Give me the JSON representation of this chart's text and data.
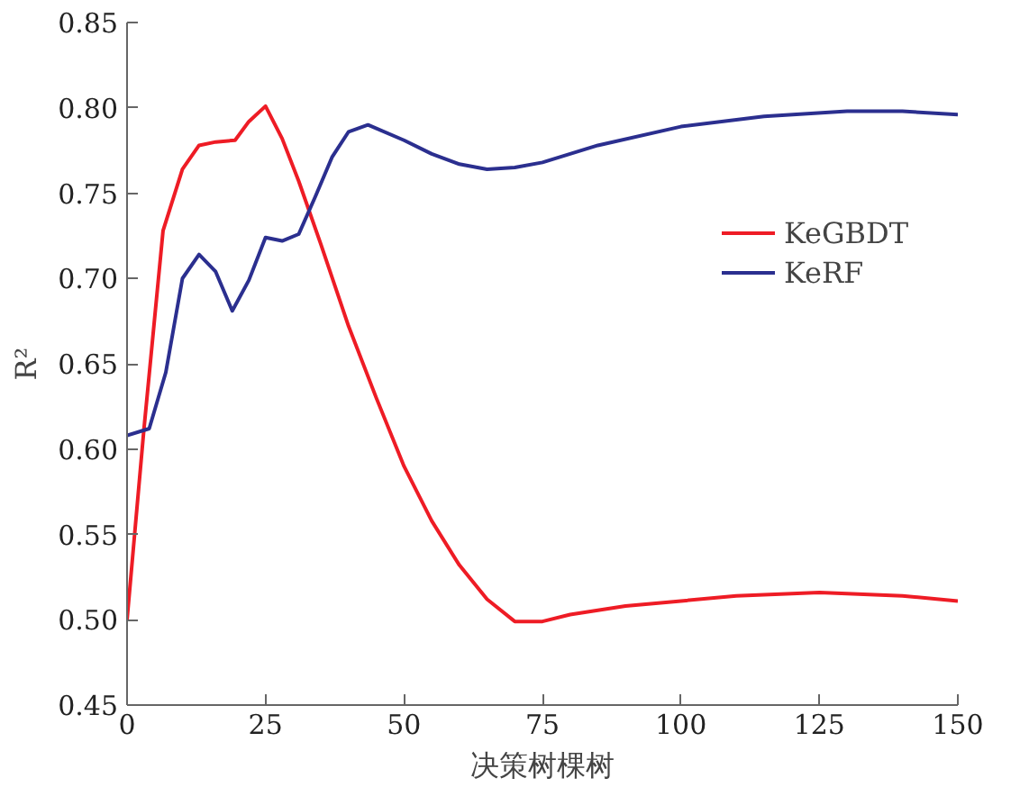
{
  "chart_data": {
    "type": "line",
    "xlabel": "决策树棵树",
    "ylabel": "R²",
    "xlim": [
      0,
      150
    ],
    "xticks": [
      0,
      25,
      50,
      75,
      100,
      125,
      150
    ],
    "ylim": [
      0.45,
      0.85
    ],
    "yticks": [
      {
        "value": 0.45,
        "label": "0.45"
      },
      {
        "value": 0.5,
        "label": "0.50"
      },
      {
        "value": 0.55,
        "label": "0.55"
      },
      {
        "value": 0.6,
        "label": "0.60"
      },
      {
        "value": 0.65,
        "label": "0.65"
      },
      {
        "value": 0.7,
        "label": "0.70"
      },
      {
        "value": 0.75,
        "label": "0.75"
      },
      {
        "value": 0.8,
        "label": "0.80"
      },
      {
        "value": 0.85,
        "label": "0.85"
      }
    ],
    "legend": "top right",
    "grid": false,
    "line_style": "solid",
    "marker": "none",
    "series": [
      {
        "name": "KeGBDT",
        "color": "#ee1c25",
        "x": [
          0,
          3,
          6.5,
          10,
          13,
          16,
          19.5,
          22,
          25,
          28,
          31,
          35,
          40,
          45,
          50,
          55,
          60,
          65,
          70,
          75,
          80,
          90,
          100,
          110,
          125,
          140,
          150
        ],
        "values": [
          0.5,
          0.61,
          0.728,
          0.764,
          0.778,
          0.78,
          0.781,
          0.792,
          0.801,
          0.782,
          0.757,
          0.72,
          0.672,
          0.63,
          0.59,
          0.558,
          0.532,
          0.512,
          0.499,
          0.499,
          0.503,
          0.508,
          0.511,
          0.514,
          0.516,
          0.514,
          0.511
        ]
      },
      {
        "name": "KeRF",
        "color": "#2b2f8f",
        "x": [
          0,
          4,
          7,
          10,
          13,
          16,
          19,
          22,
          25,
          28,
          31,
          34,
          37,
          40,
          43.5,
          50,
          55,
          60,
          65,
          70,
          75,
          85,
          100,
          115,
          130,
          140,
          150
        ],
        "values": [
          0.608,
          0.612,
          0.645,
          0.7,
          0.714,
          0.704,
          0.681,
          0.699,
          0.724,
          0.722,
          0.726,
          0.748,
          0.771,
          0.786,
          0.79,
          0.781,
          0.773,
          0.767,
          0.764,
          0.765,
          0.768,
          0.778,
          0.789,
          0.795,
          0.798,
          0.798,
          0.796
        ]
      }
    ]
  }
}
